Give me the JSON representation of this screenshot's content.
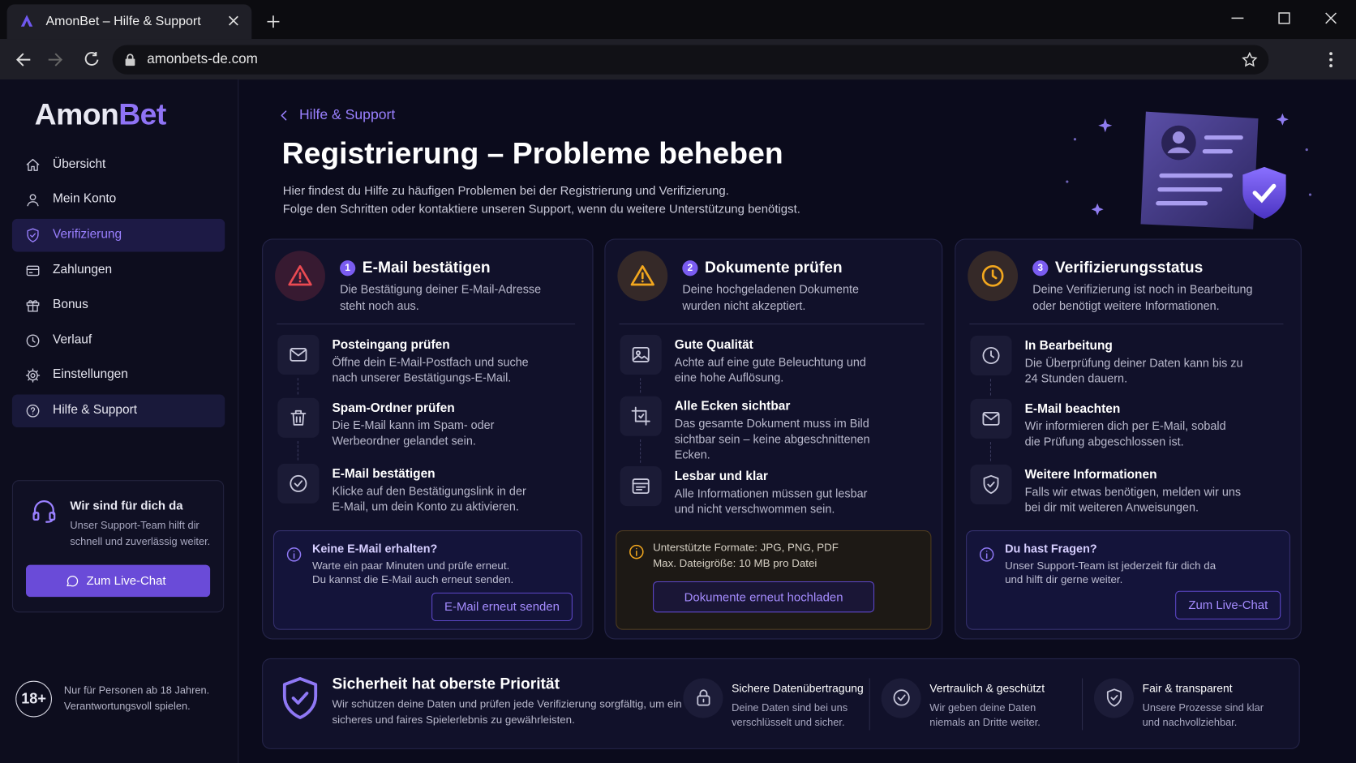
{
  "browser": {
    "tab_title": "AmonBet – Hilfe & Support",
    "url": "amonbets-de.com"
  },
  "sidebar": {
    "logo": {
      "part1": "Amon",
      "part2": "Bet"
    },
    "nav": [
      "Übersicht",
      "Mein Konto",
      "Verifizierung",
      "Zahlungen",
      "Bonus",
      "Verlauf",
      "Einstellungen",
      "Hilfe & Support"
    ],
    "support": {
      "title": "Wir sind für dich da",
      "text": [
        "Unser Support-Team hilft dir",
        "schnell und zuverlässig weiter."
      ],
      "button": "Zum Live-Chat"
    },
    "age": {
      "badge": "18+",
      "text": [
        "Nur für Personen ab 18 Jahren.",
        "Verantwortungsvoll spielen."
      ]
    }
  },
  "main": {
    "breadcrumb": "Hilfe & Support",
    "title": "Registrierung – Probleme beheben",
    "intro": [
      "Hier findest du Hilfe zu häufigen Problemen bei der Registrierung und Verifizierung.",
      "Folge den Schritten oder kontaktiere unseren Support, wenn du weitere Unterstützung benötigst."
    ]
  },
  "cards": [
    {
      "number": 1,
      "title": "E-Mail bestätigen",
      "description": [
        "Die Bestätigung deiner E-Mail-Adresse",
        "steht noch aus."
      ],
      "items": [
        {
          "title": "Posteingang prüfen",
          "text": [
            "Öffne dein E-Mail-Postfach und suche",
            "nach unserer Bestätigungs-E-Mail."
          ]
        },
        {
          "title": "Spam-Ordner prüfen",
          "text": [
            "Die E-Mail kann im Spam- oder",
            "Werbeordner gelandet sein."
          ]
        },
        {
          "title": "E-Mail bestätigen",
          "text": [
            "Klicke auf den Bestätigungslink in der",
            "E-Mail, um dein Konto zu aktivieren."
          ]
        }
      ],
      "notice": {
        "title": "Keine E-Mail erhalten?",
        "text": [
          "Warte ein paar Minuten und prüfe erneut.",
          "Du kannst die E-Mail auch erneut senden."
        ],
        "button": "E-Mail erneut senden"
      }
    },
    {
      "number": 2,
      "title": "Dokumente prüfen",
      "description": [
        "Deine hochgeladenen Dokumente",
        "wurden nicht akzeptiert."
      ],
      "items": [
        {
          "title": "Gute Qualität",
          "text": [
            "Achte auf eine gute Beleuchtung und",
            "eine hohe Auflösung."
          ]
        },
        {
          "title": "Alle Ecken sichtbar",
          "text": [
            "Das gesamte Dokument muss im Bild",
            "sichtbar sein – keine abgeschnittenen",
            "Ecken."
          ]
        },
        {
          "title": "Lesbar und klar",
          "text": [
            "Alle Informationen müssen gut lesbar",
            "und nicht verschwommen sein."
          ]
        }
      ],
      "notice": {
        "text": [
          "Unterstützte Formate: JPG, PNG, PDF",
          "Max. Dateigröße: 10 MB pro Datei"
        ],
        "button": "Dokumente erneut hochladen"
      }
    },
    {
      "number": 3,
      "title": "Verifizierungsstatus",
      "description": [
        "Deine Verifizierung ist noch in Bearbeitung",
        "oder benötigt weitere Informationen."
      ],
      "items": [
        {
          "title": "In Bearbeitung",
          "text": [
            "Die Überprüfung deiner Daten kann bis zu",
            "24 Stunden dauern."
          ]
        },
        {
          "title": "E-Mail beachten",
          "text": [
            "Wir informieren dich per E-Mail, sobald",
            "die Prüfung abgeschlossen ist."
          ]
        },
        {
          "title": "Weitere Informationen",
          "text": [
            "Falls wir etwas benötigen, melden wir uns",
            "bei dir mit weiteren Anweisungen."
          ]
        }
      ],
      "notice": {
        "title": "Du hast Fragen?",
        "text": [
          "Unser Support-Team ist jederzeit für dich da",
          "und hilft dir gerne weiter."
        ],
        "button": "Zum Live-Chat"
      }
    }
  ],
  "security": {
    "title": "Sicherheit hat oberste Priorität",
    "text": [
      "Wir schützen deine Daten und prüfen jede Verifizierung sorgfältig, um ein",
      "sicheres und faires Spielerlebnis zu gewährleisten."
    ],
    "features": [
      {
        "title": "Sichere Datenübertragung",
        "text": [
          "Deine Daten sind bei uns",
          "verschlüsselt und sicher."
        ]
      },
      {
        "title": "Vertraulich & geschützt",
        "text": [
          "Wir geben deine Daten",
          "niemals an Dritte weiter."
        ]
      },
      {
        "title": "Fair & transparent",
        "text": [
          "Unsere Prozesse sind klar",
          "und nachvollziehbar."
        ]
      }
    ]
  }
}
